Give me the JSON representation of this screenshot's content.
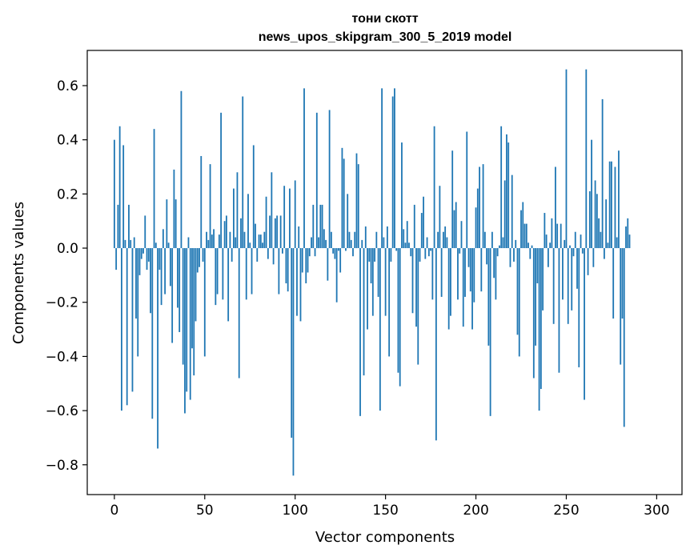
{
  "chart_data": {
    "type": "bar",
    "title_line1": "тони скотт",
    "title_line2": "news_upos_skipgram_300_5_2019 model",
    "xlabel": "Vector components",
    "ylabel": "Components values",
    "xlim": [
      -15,
      314
    ],
    "ylim": [
      -0.91,
      0.73
    ],
    "xticks": [
      0,
      50,
      100,
      150,
      200,
      250,
      300
    ],
    "xtick_labels": [
      "0",
      "50",
      "100",
      "150",
      "200",
      "250",
      "300"
    ],
    "yticks": [
      -0.8,
      -0.6,
      -0.4,
      -0.2,
      0.0,
      0.2,
      0.4,
      0.6
    ],
    "ytick_labels": [
      "−0.8",
      "−0.6",
      "−0.4",
      "−0.2",
      "0.0",
      "0.2",
      "0.4",
      "0.6"
    ],
    "bar_color": "#1f77b4",
    "grid": false,
    "values": [
      0.4,
      -0.08,
      0.16,
      0.45,
      -0.6,
      0.38,
      0.03,
      -0.58,
      0.16,
      0.03,
      -0.53,
      0.04,
      -0.26,
      -0.4,
      -0.1,
      -0.04,
      -0.02,
      0.12,
      -0.08,
      -0.05,
      -0.24,
      -0.63,
      0.44,
      0.02,
      -0.74,
      -0.08,
      -0.21,
      0.07,
      -0.17,
      0.18,
      0.02,
      -0.14,
      -0.35,
      0.29,
      0.18,
      -0.22,
      -0.31,
      0.58,
      -0.43,
      -0.61,
      -0.53,
      0.04,
      -0.56,
      -0.37,
      -0.47,
      -0.27,
      -0.09,
      -0.07,
      0.34,
      -0.05,
      -0.4,
      0.06,
      0.03,
      0.31,
      0.05,
      0.07,
      -0.21,
      -0.17,
      0.05,
      0.5,
      -0.19,
      0.1,
      0.12,
      -0.27,
      0.06,
      -0.05,
      0.22,
      0.04,
      0.28,
      -0.48,
      0.11,
      0.56,
      0.06,
      -0.19,
      0.2,
      0.02,
      -0.17,
      0.38,
      0.09,
      -0.05,
      0.05,
      0.05,
      0.02,
      0.06,
      0.19,
      -0.04,
      0.12,
      0.28,
      -0.06,
      0.11,
      0.12,
      -0.17,
      0.12,
      -0.02,
      0.23,
      -0.13,
      -0.16,
      0.22,
      -0.7,
      -0.84,
      0.25,
      -0.25,
      0.08,
      -0.27,
      -0.09,
      0.59,
      -0.13,
      -0.09,
      -0.03,
      0.04,
      0.16,
      -0.03,
      0.5,
      0.04,
      0.16,
      0.16,
      0.07,
      0.03,
      -0.12,
      0.51,
      0.06,
      -0.02,
      -0.04,
      -0.2,
      -0.01,
      -0.09,
      0.37,
      0.33,
      -0.01,
      0.2,
      0.06,
      0.03,
      -0.03,
      0.06,
      0.35,
      0.31,
      -0.62,
      0.03,
      -0.47,
      0.08,
      -0.3,
      -0.05,
      -0.13,
      -0.25,
      -0.05,
      0.06,
      -0.18,
      -0.6,
      0.59,
      0.04,
      -0.25,
      0.08,
      -0.4,
      -0.05,
      0.56,
      0.59,
      -0.01,
      -0.46,
      -0.51,
      0.39,
      0.07,
      0.02,
      0.1,
      0.02,
      -0.03,
      -0.24,
      0.16,
      -0.29,
      -0.43,
      -0.05,
      0.13,
      0.19,
      -0.04,
      0.04,
      -0.03,
      -0.01,
      -0.19,
      0.45,
      -0.71,
      0.06,
      0.23,
      -0.18,
      0.06,
      0.08,
      0.04,
      -0.3,
      -0.25,
      0.36,
      0.14,
      0.17,
      -0.19,
      -0.02,
      0.1,
      -0.29,
      -0.18,
      0.43,
      -0.07,
      -0.16,
      -0.3,
      -0.2,
      0.15,
      0.22,
      0.3,
      -0.16,
      0.31,
      0.06,
      -0.06,
      -0.36,
      -0.62,
      0.06,
      -0.11,
      -0.19,
      -0.03,
      0.01,
      0.45,
      0.04,
      0.25,
      0.42,
      0.39,
      -0.07,
      0.27,
      -0.05,
      0.03,
      -0.32,
      -0.4,
      0.14,
      0.17,
      0.09,
      0.09,
      0.02,
      -0.04,
      0.01,
      -0.48,
      -0.36,
      -0.13,
      -0.6,
      -0.52,
      -0.23,
      0.13,
      0.05,
      -0.07,
      0.02,
      0.11,
      -0.28,
      0.3,
      0.09,
      -0.46,
      0.09,
      -0.19,
      0.03,
      0.66,
      -0.28,
      0.01,
      -0.23,
      -0.03,
      0.06,
      -0.15,
      -0.44,
      0.05,
      -0.02,
      -0.56,
      0.66,
      -0.1,
      0.21,
      0.4,
      -0.07,
      0.25,
      0.2,
      0.11,
      0.06,
      0.55,
      -0.04,
      0.18,
      0.02,
      0.32,
      0.32,
      -0.26,
      0.3,
      0.04,
      0.36,
      -0.43,
      -0.26,
      -0.66,
      0.08,
      0.11,
      0.05
    ]
  }
}
